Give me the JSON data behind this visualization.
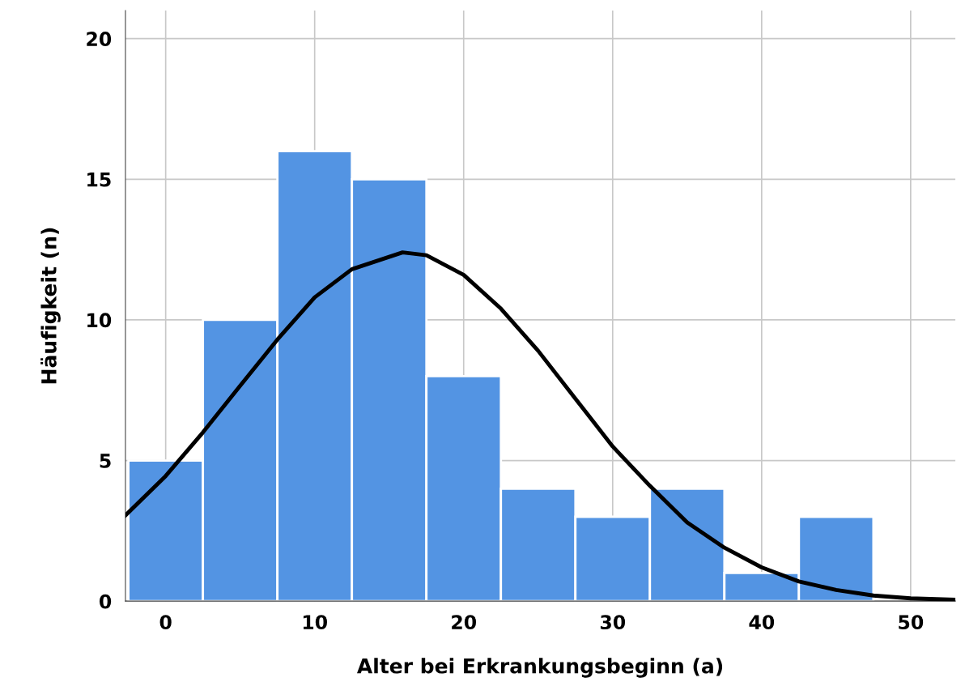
{
  "chart_data": {
    "type": "histogram",
    "xlabel": "Alter bei Erkrankungsbeginn (a)",
    "ylabel": "Häufigkeit (n)",
    "bins": [
      -2.5,
      2.5,
      7.5,
      12.5,
      17.5,
      22.5,
      27.5,
      32.5,
      37.5,
      42.5,
      47.5
    ],
    "values": [
      5,
      10,
      16,
      15,
      8,
      4,
      3,
      4,
      1,
      3
    ],
    "color": "#5394e3",
    "series": [
      {
        "type": "line",
        "color": "#000000",
        "x": [
          -2.7,
          0,
          2.5,
          5,
          7.5,
          10,
          12.5,
          15.9,
          17.5,
          20,
          22.5,
          25,
          27.5,
          30,
          32.5,
          35,
          37.5,
          40,
          42.5,
          45,
          47.5,
          50,
          53
        ],
        "values": [
          3.05,
          4.45,
          6.0,
          7.66,
          9.3,
          10.8,
          11.8,
          12.4,
          12.3,
          11.6,
          10.4,
          8.9,
          7.2,
          5.5,
          4.1,
          2.8,
          1.9,
          1.2,
          0.7,
          0.4,
          0.2,
          0.1,
          0.05
        ]
      }
    ],
    "xlim": [
      -2.7,
      53
    ],
    "ylim": [
      0,
      21
    ],
    "xticks": [
      0,
      10,
      20,
      30,
      40,
      50
    ],
    "yticks": [
      0,
      5,
      10,
      15,
      20
    ],
    "grid": true,
    "line_style": "solid"
  }
}
